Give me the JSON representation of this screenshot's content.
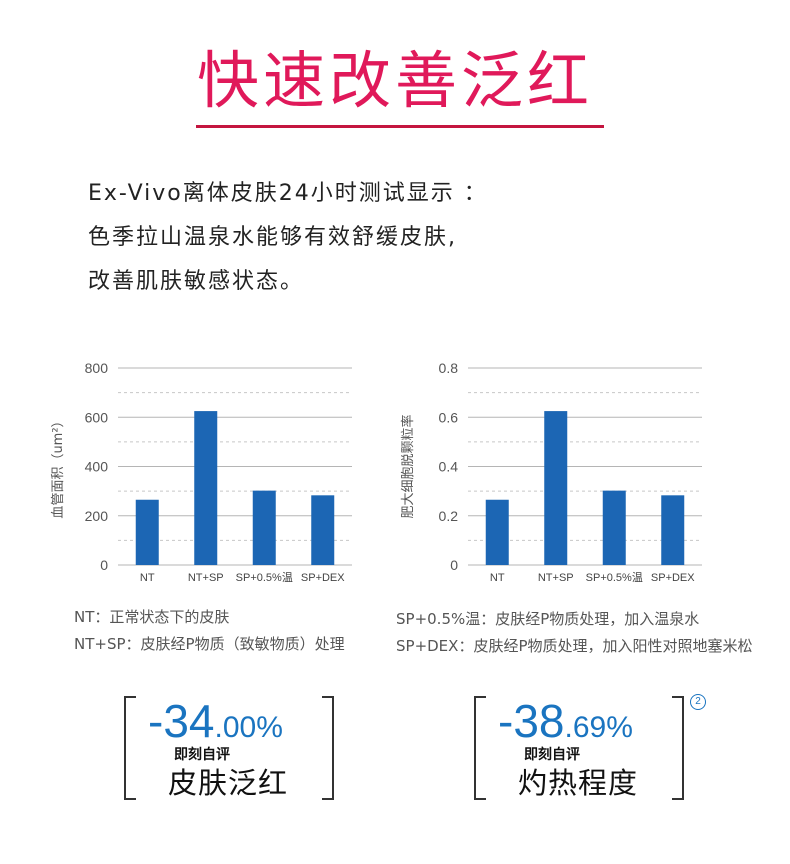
{
  "header": {
    "title": "快速改善泛红",
    "intro_lines": [
      "Ex-Vivo离体皮肤24小时测试显示 ：",
      "色季拉山温泉水能够有效舒缓皮肤,",
      "改善肌肤敏感状态。"
    ]
  },
  "chart_data": [
    {
      "type": "bar",
      "ylabel": "血管面积（um²）",
      "categories": [
        "NT",
        "NT+SP",
        "SP+0.5%温",
        "SP+DEX"
      ],
      "values": [
        265,
        625,
        302,
        283
      ],
      "ylim": [
        0,
        800
      ],
      "yticks": [
        "0",
        "200",
        "400",
        "600",
        "800"
      ],
      "grid": true,
      "color": "#1c66b4"
    },
    {
      "type": "bar",
      "ylabel": "肥大细胞脱颗粒率",
      "categories": [
        "NT",
        "NT+SP",
        "SP+0.5%温",
        "SP+DEX"
      ],
      "values": [
        0.265,
        0.625,
        0.302,
        0.283
      ],
      "ylim": [
        0,
        0.8
      ],
      "yticks": [
        "0",
        "0.2",
        "0.4",
        "0.6",
        "0.8"
      ],
      "grid": true,
      "color": "#1c66b4"
    }
  ],
  "notes": {
    "left": [
      "NT：正常状态下的皮肤",
      "NT+SP：皮肤经P物质（致敏物质）处理"
    ],
    "right": [
      "SP+0.5%温：皮肤经P物质处理，加入温泉水",
      "SP+DEX：皮肤经P物质处理，加入阳性对照地塞米松"
    ]
  },
  "stats": [
    {
      "big": "-34",
      "small": ".00%",
      "sub": "即刻自评",
      "label": "皮肤泛红"
    },
    {
      "big": "-38",
      "small": ".69%",
      "sub": "即刻自评",
      "label": "灼热程度"
    }
  ],
  "footnote_mark": "2",
  "accent_color": "#e0195a",
  "stat_color": "#1a74c0"
}
